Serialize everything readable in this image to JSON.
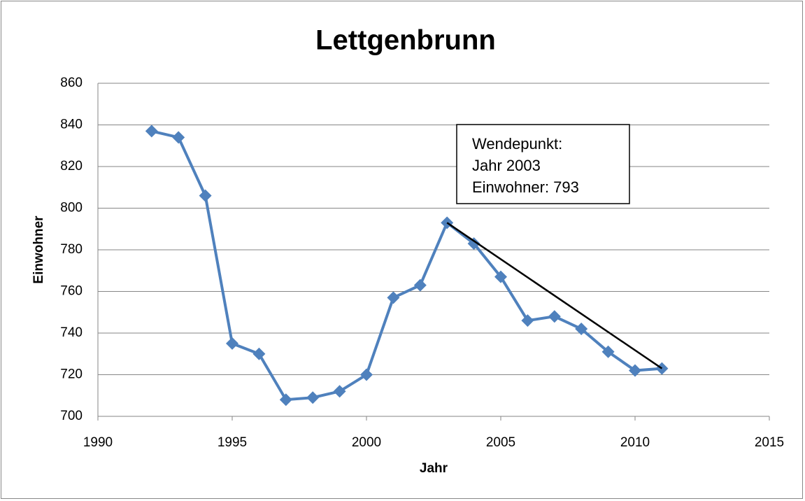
{
  "chart_data": {
    "type": "line",
    "title": "Lettgenbrunn",
    "x_label": "Jahr",
    "y_label": "Einwohner",
    "x": [
      1992,
      1993,
      1994,
      1995,
      1996,
      1997,
      1998,
      1999,
      2000,
      2001,
      2002,
      2003,
      2004,
      2005,
      2006,
      2007,
      2008,
      2009,
      2010,
      2011
    ],
    "series": [
      {
        "name": "Einwohner",
        "color": "#4f81bd",
        "values": [
          837,
          834,
          806,
          735,
          730,
          708,
          709,
          712,
          720,
          757,
          763,
          793,
          783,
          767,
          746,
          748,
          742,
          731,
          722,
          723
        ]
      }
    ],
    "xlim": [
      1990,
      2015
    ],
    "xticks": [
      1990,
      1995,
      2000,
      2005,
      2010,
      2015
    ],
    "ylim": [
      700,
      860
    ],
    "yticks": [
      700,
      720,
      740,
      760,
      780,
      800,
      820,
      840,
      860
    ],
    "grid": true,
    "annotation": [
      "Wendepunkt:",
      "Jahr 2003",
      "Einwohner: 793"
    ]
  }
}
